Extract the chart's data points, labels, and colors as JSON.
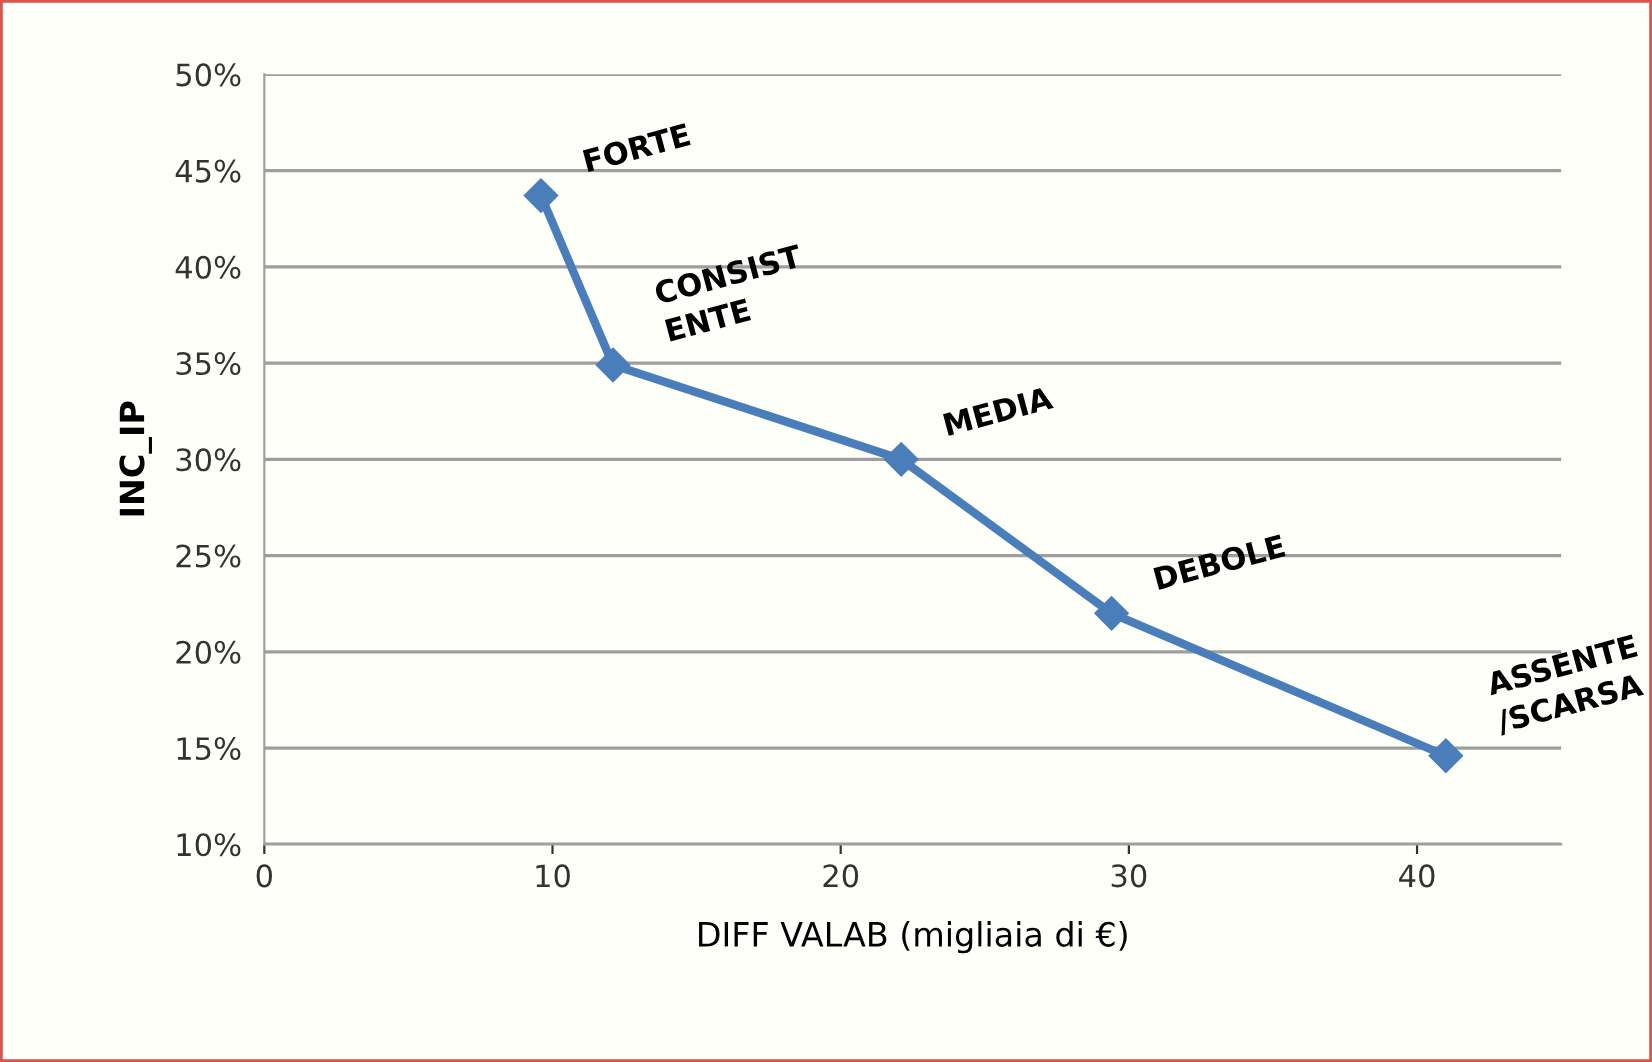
{
  "chart_data": {
    "type": "line",
    "xlabel": "DIFF VALAB (migliaia di €)",
    "ylabel": "INC_IP",
    "series": [
      {
        "color": "#4a7ebb",
        "x": [
          9.6,
          12.1,
          22.1,
          29.4,
          41.0
        ],
        "values": [
          43.7,
          34.9,
          30.0,
          22.0,
          14.6
        ]
      }
    ],
    "xlim": [
      0,
      45
    ],
    "xticks": [
      0,
      10,
      20,
      30,
      40
    ],
    "ylim": [
      10,
      50
    ],
    "yticks": [
      {
        "value": 10,
        "label": "10%"
      },
      {
        "value": 15,
        "label": "15%"
      },
      {
        "value": 20,
        "label": "20%"
      },
      {
        "value": 25,
        "label": "25%"
      },
      {
        "value": 30,
        "label": "30%"
      },
      {
        "value": 35,
        "label": "35%"
      },
      {
        "value": 40,
        "label": "40%"
      },
      {
        "value": 45,
        "label": "45%"
      },
      {
        "value": 50,
        "label": "50%"
      }
    ],
    "grid": "y",
    "marker": "diamond",
    "line_style": "solid",
    "legend": false,
    "annotations": [
      {
        "text": "FORTE",
        "x": 9.6,
        "y": 43.7
      },
      {
        "text": "CONSIST\nENTE",
        "x": 12.1,
        "y": 34.9
      },
      {
        "text": "MEDIA",
        "x": 22.1,
        "y": 30.0
      },
      {
        "text": "DEBOLE",
        "x": 29.4,
        "y": 22.0
      },
      {
        "text": "ASSENTE\n/SCARSA",
        "x": 41.0,
        "y": 14.6
      }
    ]
  }
}
